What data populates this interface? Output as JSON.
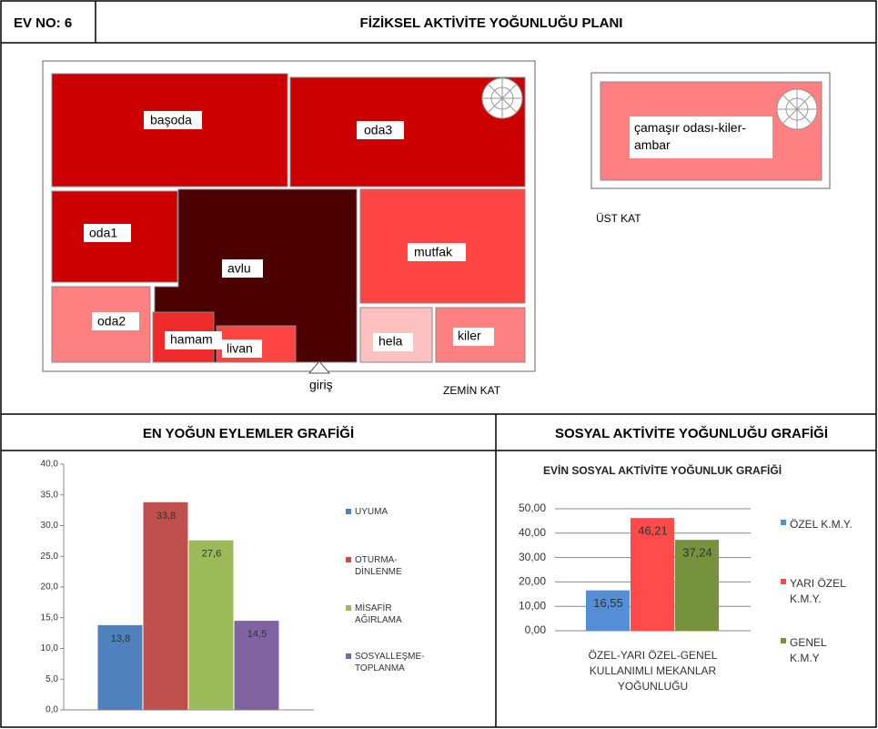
{
  "header": {
    "ev_no": "EV NO: 6",
    "title": "FİZİKSEL AKTİVİTE YOĞUNLUĞU PLANI"
  },
  "plan": {
    "rooms": {
      "basoda": "başoda",
      "oda3": "oda3",
      "oda1": "oda1",
      "avlu": "avlu",
      "mutfak": "mutfak",
      "oda2": "oda2",
      "hamam": "hamam",
      "livan": "livan",
      "hela": "hela",
      "kiler": "kiler",
      "camasir": "çamaşır odası-kiler-ambar"
    },
    "entry": "giriş",
    "ground_floor": "ZEMİN KAT",
    "upper_floor": "ÜST KAT"
  },
  "sections": {
    "left": "EN YOĞUN EYLEMLER GRAFİĞİ",
    "right": "SOSYAL AKTİVİTE YOĞUNLUĞU GRAFİĞİ"
  },
  "chart_data": [
    {
      "type": "bar",
      "series": [
        {
          "name": "UYUMA",
          "color": "#4f81bd",
          "values": [
            13.8
          ],
          "value_labels": [
            "13,8"
          ]
        },
        {
          "name": "OTURMA-DİNLENME",
          "color": "#c0504d",
          "values": [
            33.8
          ],
          "value_labels": [
            "33,8"
          ]
        },
        {
          "name": "MİSAFİR AĞIRLAMA",
          "color": "#9bbb59",
          "values": [
            27.6
          ],
          "value_labels": [
            "27,6"
          ]
        },
        {
          "name": "SOSYALLEŞME-TOPLANMA",
          "color": "#8064a2",
          "values": [
            14.5
          ],
          "value_labels": [
            "14,5"
          ]
        }
      ],
      "ylim": [
        0,
        40
      ],
      "yticks": [
        {
          "value": 0,
          "label": "0,0"
        },
        {
          "value": 5,
          "label": "5,0"
        },
        {
          "value": 10,
          "label": "10,0"
        },
        {
          "value": 15,
          "label": "15,0"
        },
        {
          "value": 20,
          "label": "20,0"
        },
        {
          "value": 25,
          "label": "25,0"
        },
        {
          "value": 30,
          "label": "30,0"
        },
        {
          "value": 35,
          "label": "35,0"
        },
        {
          "value": 40,
          "label": "40,0"
        }
      ],
      "grid": false,
      "legend": "right"
    },
    {
      "type": "bar",
      "title": "EVİN SOSYAL AKTİVİTE YOĞUNLUK GRAFİĞİ",
      "categories": [
        "ÖZEL-YARI ÖZEL-GENEL KULLANIMLI MEKANLAR YOĞUNLUĞU"
      ],
      "series": [
        {
          "name": "ÖZEL K.M.Y.",
          "color": "#558ed5",
          "values": [
            16.55
          ],
          "value_labels": [
            "16,55"
          ]
        },
        {
          "name": "YARI ÖZEL K.M.Y.",
          "color": "#ff4b4b",
          "values": [
            46.21
          ],
          "value_labels": [
            "46,21"
          ]
        },
        {
          "name": "GENEL K.M.Y",
          "color": "#76923c",
          "values": [
            37.24
          ],
          "value_labels": [
            "37,24"
          ]
        }
      ],
      "ylim": [
        0,
        50
      ],
      "yticks": [
        {
          "value": 0,
          "label": "0,00"
        },
        {
          "value": 10,
          "label": "10,00"
        },
        {
          "value": 20,
          "label": "20,00"
        },
        {
          "value": 30,
          "label": "30,00"
        },
        {
          "value": 40,
          "label": "40,00"
        },
        {
          "value": 50,
          "label": "50,00"
        }
      ],
      "grid": true,
      "legend": "right"
    }
  ]
}
